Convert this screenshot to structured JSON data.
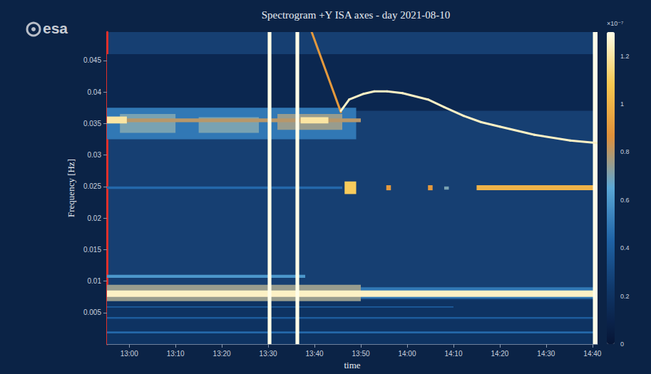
{
  "chart_data": {
    "type": "spectrogram",
    "title": "Spectrogram +Y ISA axes - day 2021-08-10",
    "logo": "esa",
    "x_label": "time",
    "y_label": "Frequency [Hz]",
    "xlim": [
      775.2,
      881.1
    ],
    "xticks": [
      {
        "value": 780,
        "label": "13:00"
      },
      {
        "value": 790,
        "label": "13:10"
      },
      {
        "value": 800,
        "label": "13:20"
      },
      {
        "value": 810,
        "label": "13:30"
      },
      {
        "value": 820,
        "label": "13:40"
      },
      {
        "value": 830,
        "label": "13:50"
      },
      {
        "value": 840,
        "label": "14:00"
      },
      {
        "value": 850,
        "label": "14:10"
      },
      {
        "value": 860,
        "label": "14:20"
      },
      {
        "value": 870,
        "label": "14:30"
      },
      {
        "value": 880,
        "label": "14:40"
      }
    ],
    "ylim": [
      0,
      0.0495
    ],
    "yticks": [
      0.005,
      0.01,
      0.015,
      0.02,
      0.025,
      0.03,
      0.035,
      0.04,
      0.045
    ],
    "grid": false,
    "cells": [
      [
        775.2,
        881.1,
        0.037,
        0.046,
        0.12
      ],
      [
        775.2,
        881.1,
        0.0,
        0.007,
        0.2
      ],
      [
        775.2,
        829,
        0.0325,
        0.0375,
        0.5
      ],
      [
        778,
        790,
        0.0335,
        0.0365,
        0.7
      ],
      [
        795,
        808,
        0.0335,
        0.036,
        0.7
      ],
      [
        812,
        826,
        0.034,
        0.0365,
        0.75
      ],
      [
        775.2,
        779.5,
        0.035,
        0.0361,
        1.2
      ],
      [
        779.5,
        830,
        0.0352,
        0.0358,
        0.8
      ],
      [
        817,
        823,
        0.035,
        0.036,
        1.2
      ],
      [
        775.2,
        826,
        0.0246,
        0.025,
        0.45
      ],
      [
        826.5,
        829,
        0.0238,
        0.0258,
        1.1
      ],
      [
        835.5,
        836.5,
        0.0244,
        0.0252,
        0.9
      ],
      [
        844.5,
        845.5,
        0.0244,
        0.0252,
        0.9
      ],
      [
        848,
        849,
        0.0245,
        0.025,
        0.7
      ],
      [
        855,
        881.1,
        0.0244,
        0.0252,
        1.0
      ],
      [
        775.2,
        818,
        0.0105,
        0.011,
        0.6
      ],
      [
        775.2,
        830,
        0.0068,
        0.0094,
        0.75
      ],
      [
        830,
        881.1,
        0.0072,
        0.009,
        0.5
      ],
      [
        775.2,
        881.1,
        0.0075,
        0.0085,
        1.25
      ],
      [
        775.2,
        881.1,
        0.0017,
        0.002,
        0.45
      ],
      [
        775.2,
        881.1,
        0.004,
        0.0043,
        0.4
      ],
      [
        775.2,
        850,
        0.0058,
        0.006,
        0.4
      ],
      [
        809.9,
        810.7,
        0,
        0.0495,
        1.3
      ],
      [
        815.9,
        816.7,
        0,
        0.0495,
        1.3
      ],
      [
        880.1,
        881.1,
        0,
        0.0495,
        1.3
      ]
    ],
    "lines": [
      {
        "value": 0.9,
        "points": [
          [
            819.4,
            0.0495
          ],
          [
            825.7,
            0.0368
          ]
        ]
      },
      {
        "value": 1.25,
        "points": [
          [
            825.7,
            0.037
          ],
          [
            827.5,
            0.0388
          ],
          [
            830.6,
            0.0397
          ],
          [
            832.9,
            0.0401
          ],
          [
            835.7,
            0.0401
          ],
          [
            839,
            0.0398
          ],
          [
            844.5,
            0.0388
          ],
          [
            848,
            0.0376
          ],
          [
            852.2,
            0.0362
          ],
          [
            856,
            0.0352
          ],
          [
            860,
            0.0345
          ],
          [
            867.5,
            0.0332
          ],
          [
            875.2,
            0.0323
          ],
          [
            881,
            0.0319
          ]
        ]
      }
    ],
    "colorbar": {
      "range": [
        0,
        1.3
      ],
      "ticks": [
        0,
        0.2,
        0.4,
        0.6,
        0.8,
        1,
        1.2
      ],
      "label": "×10⁻⁷",
      "colors": [
        "#071535",
        "#0f3566",
        "#1f63a6",
        "#5aa7d6",
        "#e0903a",
        "#f7c850",
        "#fffde8"
      ]
    }
  }
}
